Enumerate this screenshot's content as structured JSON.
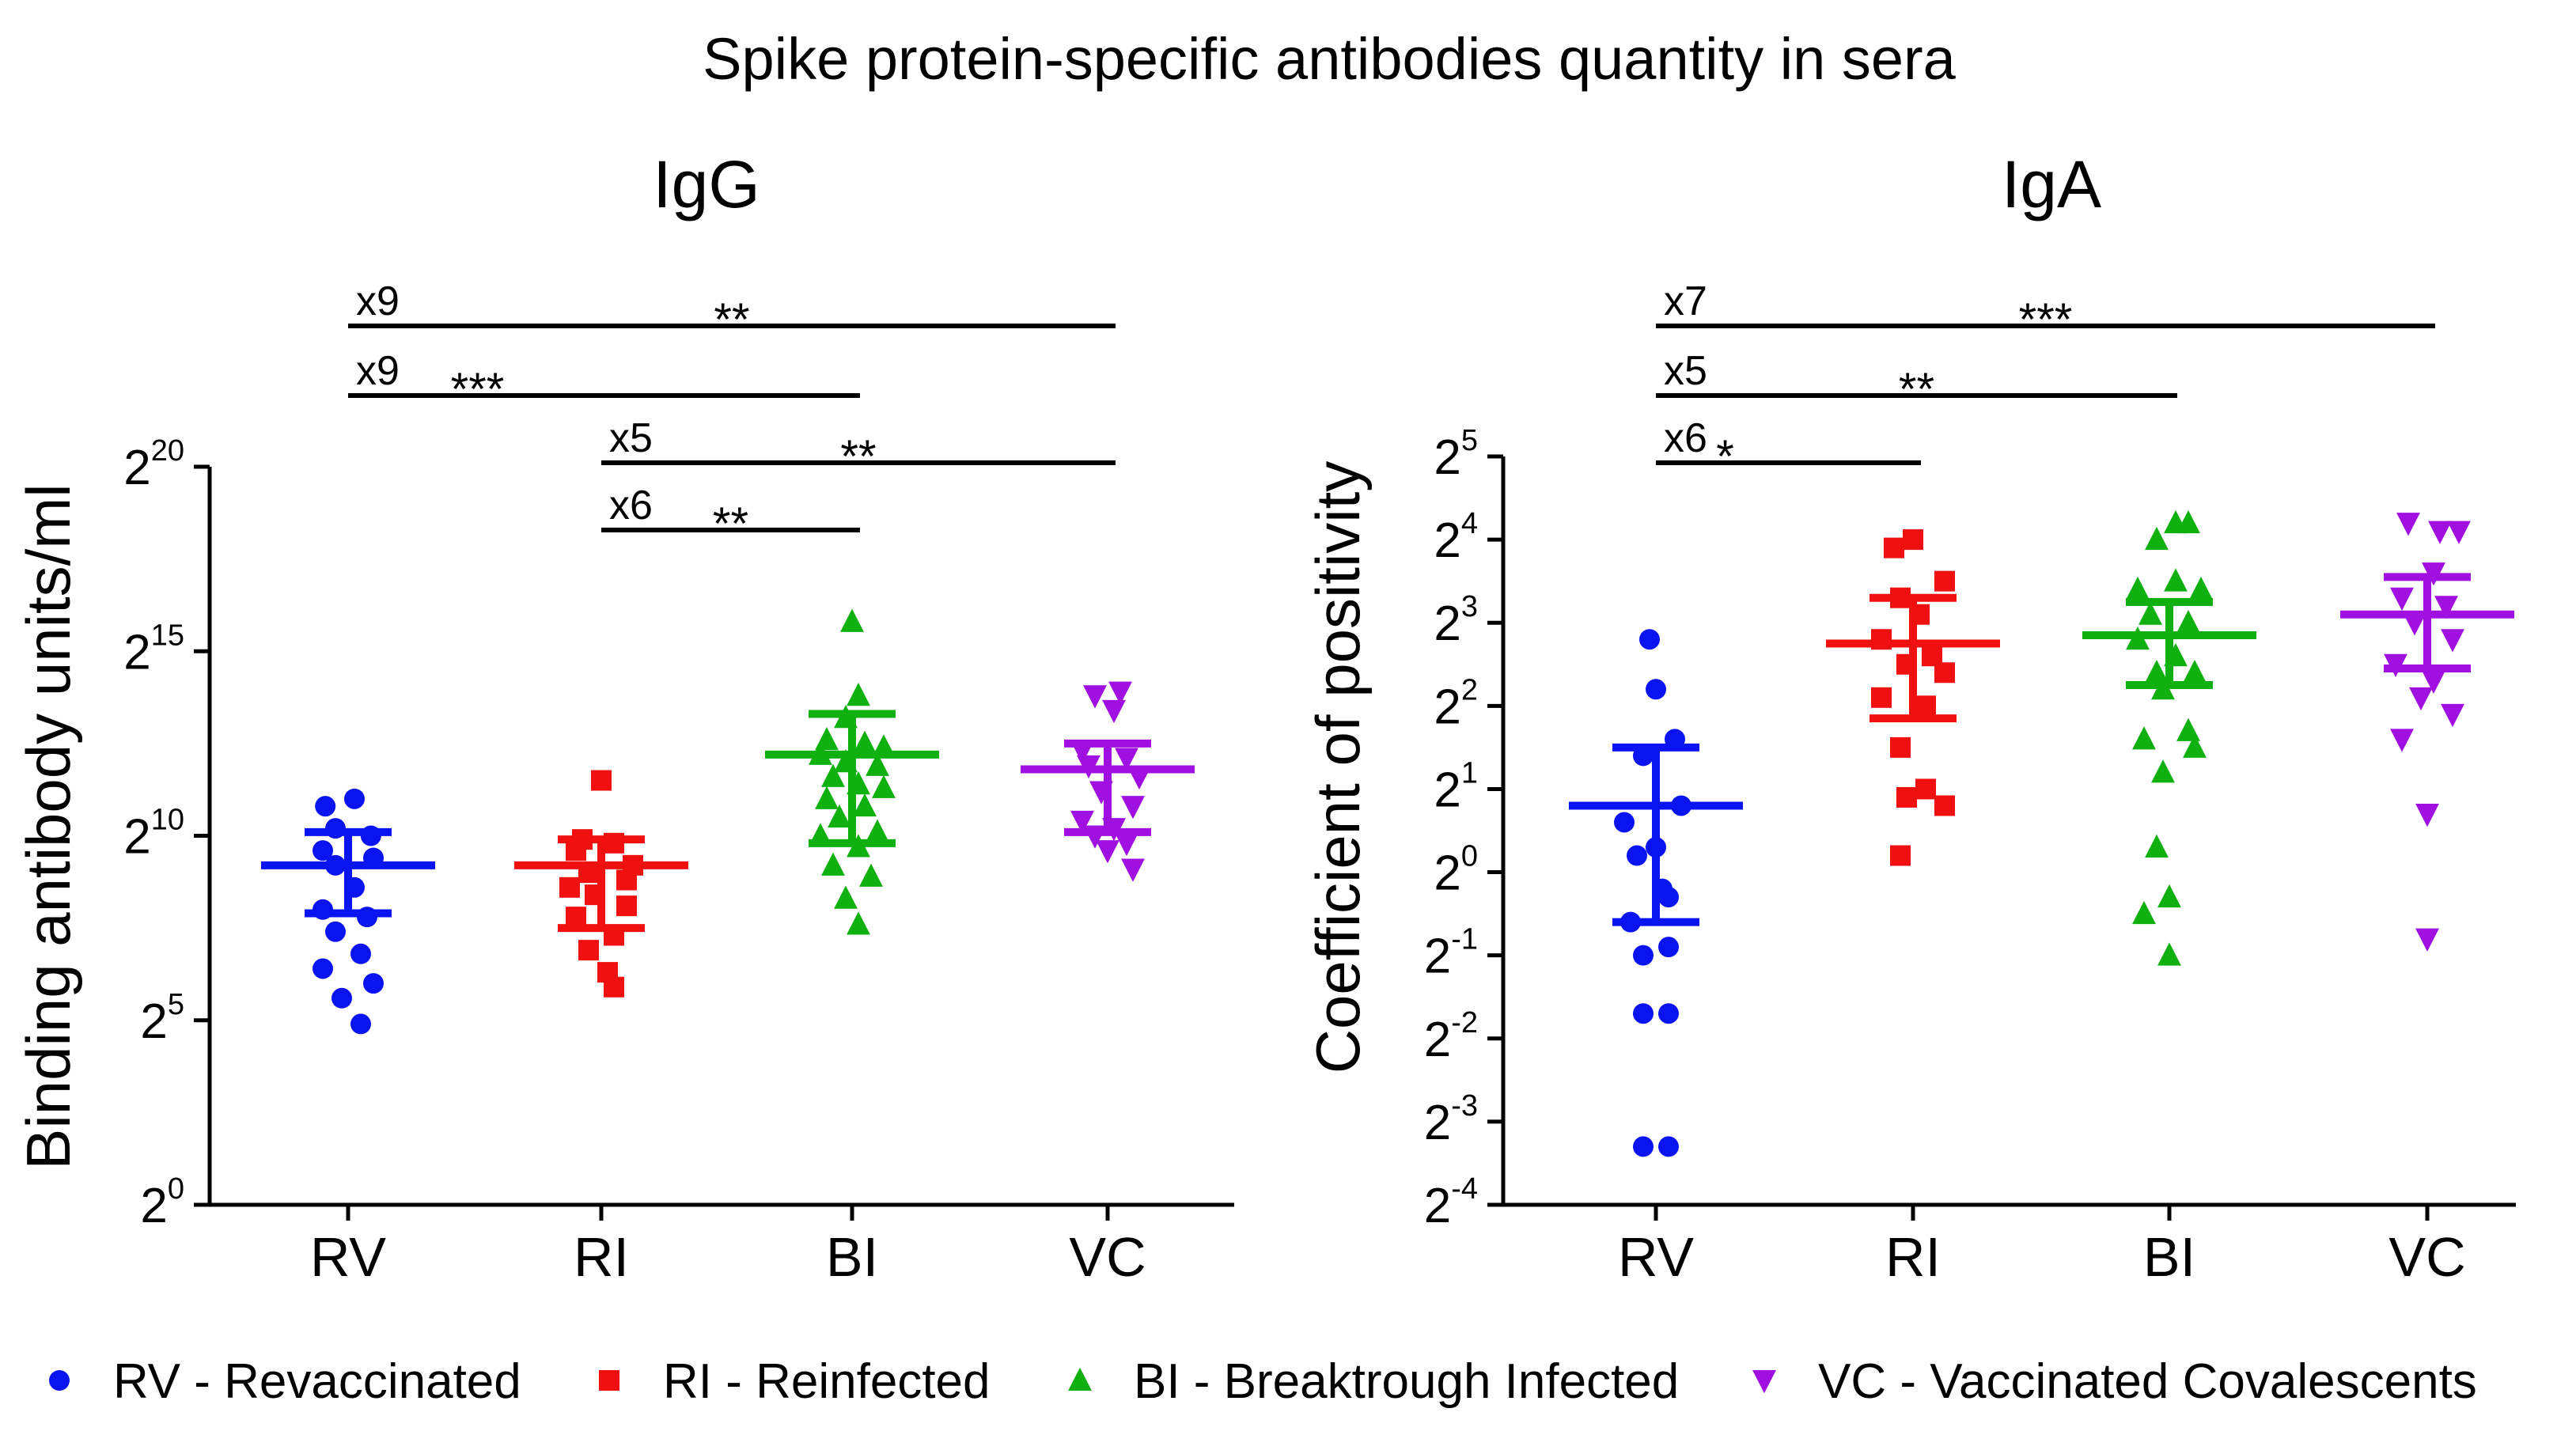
{
  "figure_title": "Spike protein-specific antibodies quantity in sera",
  "colors": {
    "RV": "#0a14f0",
    "RI": "#f01010",
    "BI": "#10b010",
    "VC": "#a010e0"
  },
  "legend": [
    {
      "group": "RV",
      "marker": "circle",
      "label": "RV - Revaccinated"
    },
    {
      "group": "RI",
      "marker": "square",
      "label": "RI - Reinfected"
    },
    {
      "group": "BI",
      "marker": "triangle-up",
      "label": "BI - Breaktrough Infected"
    },
    {
      "group": "VC",
      "marker": "triangle-down",
      "label": "VC - Vaccinated Covalescents"
    }
  ],
  "chart_data": [
    {
      "type": "scatter",
      "title": "IgG",
      "ylabel": "Binding antibody units/ml",
      "xlabel": "",
      "y_scale": "log2",
      "ylim": [
        0,
        20
      ],
      "y_ticks": [
        {
          "base": "2",
          "exp": "0"
        },
        {
          "base": "2",
          "exp": "5"
        },
        {
          "base": "2",
          "exp": "10"
        },
        {
          "base": "2",
          "exp": "15"
        },
        {
          "base": "2",
          "exp": "20"
        }
      ],
      "categories": [
        "RV",
        "RI",
        "BI",
        "VC"
      ],
      "series": [
        {
          "name": "RV",
          "marker": "circle",
          "mean": 9.2,
          "ci": [
            7.9,
            10.1
          ],
          "points": [
            [
              -0.18,
              10.8
            ],
            [
              0.05,
              11.0
            ],
            [
              -0.1,
              10.2
            ],
            [
              0.18,
              10.0
            ],
            [
              -0.2,
              9.6
            ],
            [
              0.2,
              9.4
            ],
            [
              -0.1,
              9.2
            ],
            [
              0.05,
              8.6
            ],
            [
              -0.2,
              8.0
            ],
            [
              0.15,
              7.8
            ],
            [
              -0.1,
              7.4
            ],
            [
              0.1,
              6.8
            ],
            [
              -0.2,
              6.4
            ],
            [
              0.2,
              6.0
            ],
            [
              -0.05,
              5.6
            ],
            [
              0.1,
              4.9
            ]
          ]
        },
        {
          "name": "RI",
          "marker": "square",
          "mean": 9.2,
          "ci": [
            7.5,
            9.9
          ],
          "points": [
            [
              0.0,
              11.5
            ],
            [
              -0.15,
              9.9
            ],
            [
              0.1,
              9.8
            ],
            [
              -0.2,
              9.6
            ],
            [
              0.25,
              9.2
            ],
            [
              -0.1,
              9.0
            ],
            [
              0.2,
              8.8
            ],
            [
              -0.25,
              8.6
            ],
            [
              -0.05,
              8.4
            ],
            [
              0.2,
              8.1
            ],
            [
              -0.2,
              7.8
            ],
            [
              0.1,
              7.3
            ],
            [
              -0.1,
              6.9
            ],
            [
              0.05,
              6.3
            ],
            [
              0.1,
              5.9
            ]
          ]
        },
        {
          "name": "BI",
          "marker": "triangle-up",
          "mean": 12.2,
          "ci": [
            9.8,
            13.3
          ],
          "points": [
            [
              0.0,
              15.8
            ],
            [
              0.05,
              13.8
            ],
            [
              -0.05,
              13.2
            ],
            [
              -0.2,
              12.6
            ],
            [
              0.1,
              12.5
            ],
            [
              0.25,
              12.4
            ],
            [
              -0.25,
              12.2
            ],
            [
              -0.05,
              12.0
            ],
            [
              0.2,
              11.9
            ],
            [
              -0.15,
              11.6
            ],
            [
              0.05,
              11.4
            ],
            [
              0.25,
              11.3
            ],
            [
              -0.2,
              11.0
            ],
            [
              0.1,
              10.8
            ],
            [
              -0.1,
              10.5
            ],
            [
              0.2,
              10.1
            ],
            [
              -0.25,
              10.0
            ],
            [
              0.05,
              9.7
            ],
            [
              -0.15,
              9.2
            ],
            [
              0.15,
              8.9
            ],
            [
              -0.05,
              8.3
            ],
            [
              0.05,
              7.6
            ]
          ]
        },
        {
          "name": "VC",
          "marker": "triangle-down",
          "mean": 11.8,
          "ci": [
            10.1,
            12.5
          ],
          "points": [
            [
              -0.1,
              13.8
            ],
            [
              0.1,
              13.9
            ],
            [
              0.05,
              13.4
            ],
            [
              -0.2,
              12.3
            ],
            [
              0.15,
              12.1
            ],
            [
              -0.15,
              11.9
            ],
            [
              0.25,
              11.6
            ],
            [
              -0.05,
              11.2
            ],
            [
              0.2,
              10.8
            ],
            [
              -0.2,
              10.4
            ],
            [
              0.05,
              10.2
            ],
            [
              -0.1,
              10.0
            ],
            [
              0.15,
              9.8
            ],
            [
              0.0,
              9.6
            ],
            [
              0.2,
              9.1
            ]
          ]
        }
      ],
      "significance": [
        {
          "from": "RV",
          "to": "VC",
          "fold": "x9",
          "stars": "**"
        },
        {
          "from": "RV",
          "to": "BI",
          "fold": "x9",
          "stars": "***"
        },
        {
          "from": "RI",
          "to": "VC",
          "fold": "x5",
          "stars": "**"
        },
        {
          "from": "RI",
          "to": "BI",
          "fold": "x6",
          "stars": "**"
        }
      ]
    },
    {
      "type": "scatter",
      "title": "IgA",
      "ylabel": "Coefficient of positivity",
      "xlabel": "",
      "y_scale": "log2",
      "ylim": [
        -4,
        5
      ],
      "y_ticks": [
        {
          "base": "2",
          "exp": "-4"
        },
        {
          "base": "2",
          "exp": "-3"
        },
        {
          "base": "2",
          "exp": "-2"
        },
        {
          "base": "2",
          "exp": "-1"
        },
        {
          "base": "2",
          "exp": "0"
        },
        {
          "base": "2",
          "exp": "1"
        },
        {
          "base": "2",
          "exp": "2"
        },
        {
          "base": "2",
          "exp": "3"
        },
        {
          "base": "2",
          "exp": "4"
        },
        {
          "base": "2",
          "exp": "5"
        }
      ],
      "categories": [
        "RV",
        "RI",
        "BI",
        "VC"
      ],
      "series": [
        {
          "name": "RV",
          "marker": "circle",
          "mean": 0.8,
          "ci": [
            -0.6,
            1.5
          ],
          "points": [
            [
              -0.05,
              2.8
            ],
            [
              0.0,
              2.2
            ],
            [
              0.15,
              1.6
            ],
            [
              -0.1,
              1.4
            ],
            [
              0.2,
              0.8
            ],
            [
              -0.25,
              0.6
            ],
            [
              0.0,
              0.3
            ],
            [
              -0.15,
              0.2
            ],
            [
              0.05,
              -0.2
            ],
            [
              0.1,
              -0.3
            ],
            [
              -0.2,
              -0.6
            ],
            [
              0.1,
              -0.9
            ],
            [
              -0.1,
              -1.0
            ],
            [
              0.1,
              -1.7
            ],
            [
              -0.1,
              -1.7
            ],
            [
              0.1,
              -3.3
            ],
            [
              -0.1,
              -3.3
            ]
          ]
        },
        {
          "name": "RI",
          "marker": "square",
          "mean": 2.75,
          "ci": [
            1.85,
            3.3
          ],
          "points": [
            [
              0.0,
              4.0
            ],
            [
              -0.15,
              3.9
            ],
            [
              0.25,
              3.5
            ],
            [
              -0.1,
              3.3
            ],
            [
              0.05,
              3.1
            ],
            [
              -0.25,
              2.8
            ],
            [
              0.15,
              2.6
            ],
            [
              -0.05,
              2.5
            ],
            [
              0.25,
              2.4
            ],
            [
              -0.25,
              2.1
            ],
            [
              0.1,
              2.0
            ],
            [
              -0.1,
              1.5
            ],
            [
              0.1,
              1.0
            ],
            [
              -0.05,
              0.9
            ],
            [
              0.25,
              0.8
            ],
            [
              -0.1,
              0.2
            ]
          ]
        },
        {
          "name": "BI",
          "marker": "triangle-up",
          "mean": 2.85,
          "ci": [
            2.25,
            3.25
          ],
          "points": [
            [
              -0.1,
              4.0
            ],
            [
              0.05,
              4.2
            ],
            [
              0.15,
              4.2
            ],
            [
              -0.25,
              3.4
            ],
            [
              0.05,
              3.5
            ],
            [
              0.25,
              3.4
            ],
            [
              -0.15,
              3.1
            ],
            [
              0.15,
              3.0
            ],
            [
              -0.25,
              2.8
            ],
            [
              0.05,
              2.6
            ],
            [
              -0.1,
              2.4
            ],
            [
              0.2,
              2.4
            ],
            [
              -0.05,
              2.2
            ],
            [
              0.15,
              1.7
            ],
            [
              -0.2,
              1.6
            ],
            [
              0.2,
              1.5
            ],
            [
              -0.05,
              1.2
            ],
            [
              -0.1,
              0.3
            ],
            [
              0.0,
              -0.3
            ],
            [
              -0.2,
              -0.5
            ],
            [
              0.0,
              -1.0
            ]
          ]
        },
        {
          "name": "VC",
          "marker": "triangle-down",
          "mean": 3.1,
          "ci": [
            2.45,
            3.55
          ],
          "points": [
            [
              -0.15,
              4.2
            ],
            [
              0.1,
              4.1
            ],
            [
              0.25,
              4.1
            ],
            [
              0.05,
              3.6
            ],
            [
              -0.2,
              3.3
            ],
            [
              0.15,
              3.2
            ],
            [
              -0.1,
              3.0
            ],
            [
              0.2,
              2.8
            ],
            [
              -0.25,
              2.5
            ],
            [
              0.05,
              2.3
            ],
            [
              -0.05,
              2.1
            ],
            [
              0.2,
              1.9
            ],
            [
              -0.2,
              1.6
            ],
            [
              0.0,
              0.7
            ],
            [
              0.0,
              -0.8
            ]
          ]
        }
      ],
      "significance": [
        {
          "from": "RV",
          "to": "VC",
          "fold": "x7",
          "stars": "***"
        },
        {
          "from": "RV",
          "to": "BI",
          "fold": "x5",
          "stars": "**"
        },
        {
          "from": "RV",
          "to": "RI",
          "fold": "x6",
          "stars": "*"
        }
      ]
    }
  ]
}
